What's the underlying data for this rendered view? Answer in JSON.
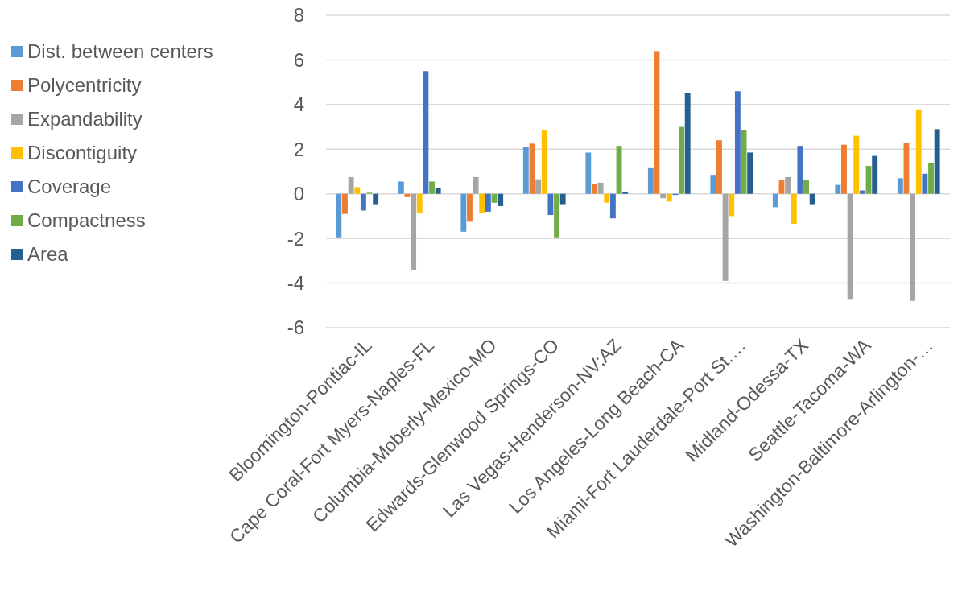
{
  "chart_data": {
    "type": "bar",
    "categories": [
      "Bloomington-Pontiac-IL",
      "Cape Coral-Fort Myers-Naples-FL",
      "Columbia-Moberly-Mexico-MO",
      "Edwards-Glenwood Springs-CO",
      "Las Vegas-Henderson-NV;AZ",
      "Los Angeles-Long Beach-CA",
      "Miami-Fort Lauderdale-Port St.…",
      "Midland-Odessa-TX",
      "Seattle-Tacoma-WA",
      "Washington-Baltimore-Arlington-…"
    ],
    "series": [
      {
        "name": "Dist. between centers",
        "color": "#5b9bd5",
        "values": [
          -1.95,
          0.55,
          -1.7,
          2.1,
          1.85,
          1.15,
          0.85,
          -0.6,
          0.4,
          0.7
        ]
      },
      {
        "name": "Polycentricity",
        "color": "#ed7d31",
        "values": [
          -0.9,
          -0.15,
          -1.25,
          2.25,
          0.45,
          6.4,
          2.4,
          0.6,
          2.2,
          2.3
        ]
      },
      {
        "name": "Expandability",
        "color": "#a5a5a5",
        "values": [
          0.75,
          -3.4,
          0.75,
          0.65,
          0.5,
          -0.2,
          -3.9,
          0.75,
          -4.75,
          -4.8
        ]
      },
      {
        "name": "Discontiguity",
        "color": "#ffc000",
        "values": [
          0.3,
          -0.85,
          -0.85,
          2.85,
          -0.4,
          -0.35,
          -1.0,
          -1.35,
          2.6,
          3.75
        ]
      },
      {
        "name": "Coverage",
        "color": "#4472c4",
        "values": [
          -0.75,
          5.5,
          -0.8,
          -0.95,
          -1.1,
          -0.05,
          4.6,
          2.15,
          0.15,
          0.9
        ]
      },
      {
        "name": "Compactness",
        "color": "#70ad47",
        "values": [
          0.05,
          0.55,
          -0.4,
          -1.95,
          2.15,
          3.0,
          2.85,
          0.6,
          1.25,
          1.4
        ]
      },
      {
        "name": "Area",
        "color": "#255e91",
        "values": [
          -0.5,
          0.25,
          -0.55,
          -0.5,
          0.1,
          4.5,
          1.85,
          -0.5,
          1.7,
          2.9
        ]
      }
    ],
    "ylim": [
      -6,
      8
    ],
    "yticks": [
      -6,
      -4,
      -2,
      0,
      2,
      4,
      6,
      8
    ],
    "grid": "y",
    "legend": "left"
  }
}
